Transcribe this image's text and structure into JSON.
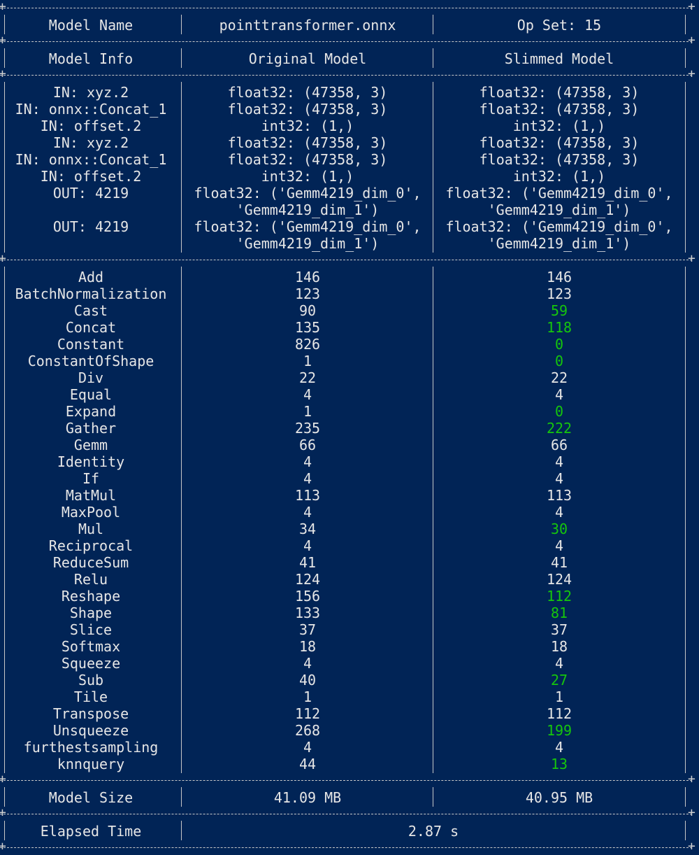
{
  "header": {
    "col1": "Model Name",
    "col2": "pointtransformer.onnx",
    "col3": "Op Set: 15"
  },
  "info_header": {
    "col1": "Model Info",
    "col2": "Original Model",
    "col3": "Slimmed Model"
  },
  "io": [
    {
      "name": "IN: xyz.2",
      "orig": [
        "float32: (47358, 3)"
      ],
      "slim": [
        "float32: (47358, 3)"
      ]
    },
    {
      "name": "IN: onnx::Concat_1",
      "orig": [
        "float32: (47358, 3)"
      ],
      "slim": [
        "float32: (47358, 3)"
      ]
    },
    {
      "name": "IN: offset.2",
      "orig": [
        "int32: (1,)"
      ],
      "slim": [
        "int32: (1,)"
      ]
    },
    {
      "name": "IN: xyz.2",
      "orig": [
        "float32: (47358, 3)"
      ],
      "slim": [
        "float32: (47358, 3)"
      ]
    },
    {
      "name": "IN: onnx::Concat_1",
      "orig": [
        "float32: (47358, 3)"
      ],
      "slim": [
        "float32: (47358, 3)"
      ]
    },
    {
      "name": "IN: offset.2",
      "orig": [
        "int32: (1,)"
      ],
      "slim": [
        "int32: (1,)"
      ]
    },
    {
      "name": "OUT: 4219",
      "orig": [
        "float32: ('Gemm4219_dim_0',",
        "'Gemm4219_dim_1')"
      ],
      "slim": [
        "float32: ('Gemm4219_dim_0',",
        "'Gemm4219_dim_1')"
      ]
    },
    {
      "name": "OUT: 4219",
      "orig": [
        "float32: ('Gemm4219_dim_0',",
        "'Gemm4219_dim_1')"
      ],
      "slim": [
        "float32: ('Gemm4219_dim_0',",
        "'Gemm4219_dim_1')"
      ]
    }
  ],
  "ops": [
    {
      "name": "Add",
      "orig": "146",
      "slim": "146",
      "changed": false
    },
    {
      "name": "BatchNormalization",
      "orig": "123",
      "slim": "123",
      "changed": false
    },
    {
      "name": "Cast",
      "orig": "90",
      "slim": "59",
      "changed": true
    },
    {
      "name": "Concat",
      "orig": "135",
      "slim": "118",
      "changed": true
    },
    {
      "name": "Constant",
      "orig": "826",
      "slim": "0",
      "changed": true
    },
    {
      "name": "ConstantOfShape",
      "orig": "1",
      "slim": "0",
      "changed": true
    },
    {
      "name": "Div",
      "orig": "22",
      "slim": "22",
      "changed": false
    },
    {
      "name": "Equal",
      "orig": "4",
      "slim": "4",
      "changed": false
    },
    {
      "name": "Expand",
      "orig": "1",
      "slim": "0",
      "changed": true
    },
    {
      "name": "Gather",
      "orig": "235",
      "slim": "222",
      "changed": true
    },
    {
      "name": "Gemm",
      "orig": "66",
      "slim": "66",
      "changed": false
    },
    {
      "name": "Identity",
      "orig": "4",
      "slim": "4",
      "changed": false
    },
    {
      "name": "If",
      "orig": "4",
      "slim": "4",
      "changed": false
    },
    {
      "name": "MatMul",
      "orig": "113",
      "slim": "113",
      "changed": false
    },
    {
      "name": "MaxPool",
      "orig": "4",
      "slim": "4",
      "changed": false
    },
    {
      "name": "Mul",
      "orig": "34",
      "slim": "30",
      "changed": true
    },
    {
      "name": "Reciprocal",
      "orig": "4",
      "slim": "4",
      "changed": false
    },
    {
      "name": "ReduceSum",
      "orig": "41",
      "slim": "41",
      "changed": false
    },
    {
      "name": "Relu",
      "orig": "124",
      "slim": "124",
      "changed": false
    },
    {
      "name": "Reshape",
      "orig": "156",
      "slim": "112",
      "changed": true
    },
    {
      "name": "Shape",
      "orig": "133",
      "slim": "81",
      "changed": true
    },
    {
      "name": "Slice",
      "orig": "37",
      "slim": "37",
      "changed": false
    },
    {
      "name": "Softmax",
      "orig": "18",
      "slim": "18",
      "changed": false
    },
    {
      "name": "Squeeze",
      "orig": "4",
      "slim": "4",
      "changed": false
    },
    {
      "name": "Sub",
      "orig": "40",
      "slim": "27",
      "changed": true
    },
    {
      "name": "Tile",
      "orig": "1",
      "slim": "1",
      "changed": false
    },
    {
      "name": "Transpose",
      "orig": "112",
      "slim": "112",
      "changed": false
    },
    {
      "name": "Unsqueeze",
      "orig": "268",
      "slim": "199",
      "changed": true
    },
    {
      "name": "furthestsampling",
      "orig": "4",
      "slim": "4",
      "changed": false
    },
    {
      "name": "knnquery",
      "orig": "44",
      "slim": "13",
      "changed": true
    }
  ],
  "model_size": {
    "label": "Model Size",
    "orig": "41.09 MB",
    "slim": "40.95 MB"
  },
  "elapsed": {
    "label": "Elapsed Time",
    "value": "2.87 s"
  },
  "colors": {
    "background": "#012456",
    "text": "#e6e6e6",
    "changed_value": "#16c60c",
    "border": "#c8c8c8"
  }
}
